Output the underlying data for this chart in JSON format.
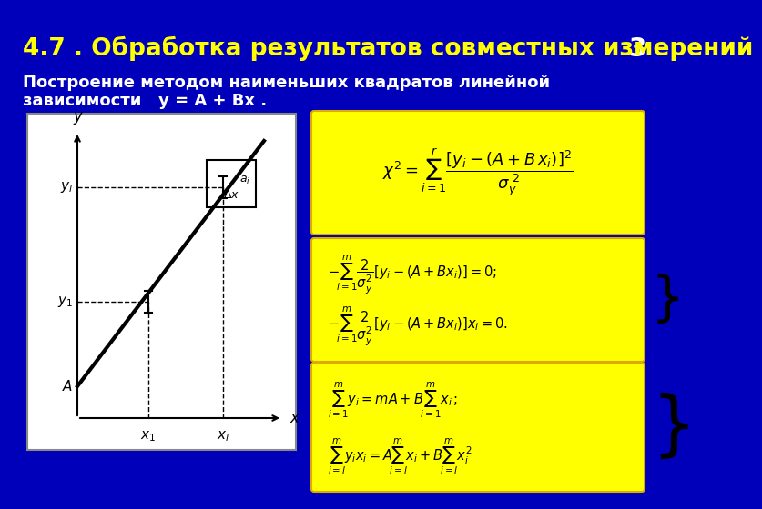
{
  "background_color": "#0000bb",
  "title": "4.7 . Обработка результатов совместных измерений",
  "title_color": "#ffff00",
  "title_fontsize": 19,
  "slide_number": "3",
  "slide_number_color": "#ffffff",
  "subtitle_line1": "Построение методом наименьших квадратов линейной",
  "subtitle_line2": "зависимости   y = A + Bx .",
  "subtitle_color": "#ffffff",
  "subtitle_fontsize": 13,
  "formula_box_color": "#ffff00",
  "formula_text_color": "#000000",
  "graph_bg": "#ffffff"
}
